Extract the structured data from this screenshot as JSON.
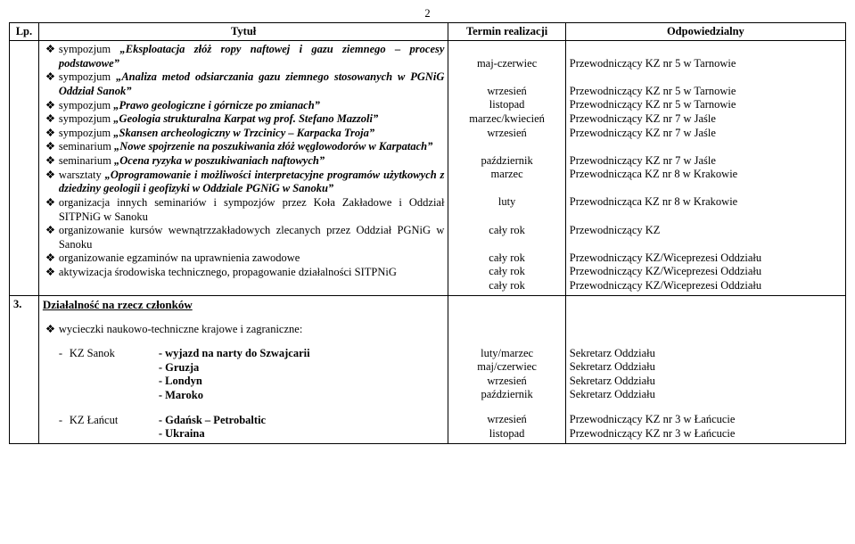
{
  "page_number": "2",
  "headers": {
    "lp": "Lp.",
    "title": "Tytuł",
    "term": "Termin realizacji",
    "resp": "Odpowiedzialny"
  },
  "bullet_glyph": "❖",
  "items": [
    {
      "text": "sympozjum „Eksploatacja złóż ropy naftowej i gazu ziemnego – procesy podstawowe”",
      "term": "maj-czerwiec",
      "resp": "Przewodniczący KZ nr 5 w Tarnowie",
      "lines": 2,
      "style": "boldital"
    },
    {
      "text": "sympozjum „Analiza metod odsiarczania gazu ziemnego stosowanych w PGNiG Oddział Sanok”",
      "term": "wrzesień",
      "resp": "Przewodniczący KZ nr 5 w Tarnowie",
      "lines": 2,
      "style": "boldital"
    },
    {
      "text": "sympozjum „Prawo geologiczne i górnicze po zmianach”",
      "term": "listopad",
      "resp": "Przewodniczący KZ nr 5 w Tarnowie",
      "lines": 1,
      "style": "boldital"
    },
    {
      "text": "sympozjum „Geologia strukturalna Karpat wg prof. Stefano Mazzoli”",
      "term": "marzec/kwiecień",
      "resp": "Przewodniczący KZ nr 7 w Jaśle",
      "lines": 1,
      "style": "boldital"
    },
    {
      "text": "sympozjum „Skansen archeologiczny w Trzcinicy – Karpacka Troja”",
      "term": "wrzesień",
      "resp": "Przewodniczący KZ nr 7 w Jaśle",
      "lines": 1,
      "style": "boldital"
    },
    {
      "text": "seminarium „Nowe spojrzenie na poszukiwania złóż węglowodorów w Karpatach”",
      "term": "październik",
      "resp": "Przewodniczący KZ nr 7 w Jaśle",
      "lines": 2,
      "style": "boldital"
    },
    {
      "text": "seminarium „Ocena ryzyka w poszukiwaniach naftowych”",
      "term": "marzec",
      "resp": "Przewodnicząca KZ nr 8 w Krakowie",
      "lines": 1,
      "style": "boldital"
    },
    {
      "text": "warsztaty „Oprogramowanie i możliwości interpretacyjne programów użytkowych z dziedziny geologii i geofizyki w Oddziale PGNiG w Sanoku”",
      "term": "luty",
      "resp": "Przewodnicząca KZ nr 8 w Krakowie",
      "lines": 2,
      "style": "boldital"
    },
    {
      "text": "organizacja innych seminariów i sympozjów przez Koła Zakładowe i Oddział SITPNiG w Sanoku",
      "term": "cały rok",
      "resp": "Przewodniczący KZ",
      "lines": 2,
      "style": "plain"
    },
    {
      "text": "organizowanie kursów wewnątrzzakładowych zlecanych przez Oddział PGNiG w Sanoku",
      "term": "cały rok",
      "resp": "Przewodniczący KZ/Wiceprezesi Oddziału",
      "lines": 2,
      "style": "plain"
    },
    {
      "text": "organizowanie egzaminów na uprawnienia zawodowe",
      "term": "cały rok",
      "resp": "Przewodniczący KZ/Wiceprezesi Oddziału",
      "lines": 1,
      "style": "plain"
    },
    {
      "text": "aktywizacja środowiska technicznego, propagowanie działalności SITPNiG",
      "term": "cały rok",
      "resp": "Przewodniczący KZ/Wiceprezesi Oddziału",
      "lines": 1,
      "style": "plain"
    }
  ],
  "section3": {
    "number": "3.",
    "heading": "Działalność na rzecz członków",
    "intro": "wycieczki naukowo-techniczne krajowe i zagraniczne:",
    "trips": [
      {
        "kz": "KZ Sanok",
        "dests": [
          {
            "label": "- wyjazd na narty do Szwajcarii",
            "term": "luty/marzec",
            "resp": "Sekretarz Oddziału",
            "bold": true
          },
          {
            "label": "- Gruzja",
            "term": "maj/czerwiec",
            "resp": "Sekretarz Oddziału",
            "bold": true
          },
          {
            "label": "- Londyn",
            "term": "wrzesień",
            "resp": "Sekretarz Oddziału",
            "bold": true
          },
          {
            "label": "- Maroko",
            "term": "październik",
            "resp": "Sekretarz Oddziału",
            "bold": true
          }
        ]
      },
      {
        "kz": "KZ Łańcut",
        "dests": [
          {
            "label": "- Gdańsk – Petrobaltic",
            "term": "wrzesień",
            "resp": "Przewodniczący KZ nr 3 w Łańcucie",
            "bold": true
          },
          {
            "label": "- Ukraina",
            "term": "listopad",
            "resp": "Przewodniczący KZ nr 3 w Łańcucie",
            "bold": true
          }
        ]
      }
    ]
  }
}
